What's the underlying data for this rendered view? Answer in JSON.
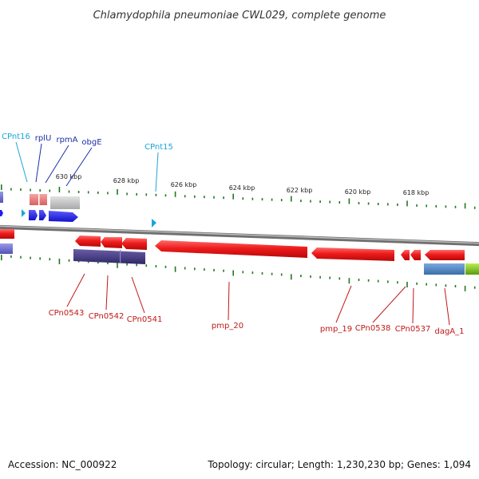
{
  "title": "Chlamydophila pneumoniae CWL029, complete genome",
  "footer": {
    "accession": "Accession: NC_000922",
    "summary": "Topology: circular; Length: 1,230,230 bp; Genes: 1,094"
  },
  "ticks": [
    "630 kbp",
    "628 kbp",
    "626 kbp",
    "624 kbp",
    "622 kbp",
    "620 kbp",
    "618 kbp"
  ],
  "colors": {
    "backbone": "#8a8a8a",
    "cds": "#ee1c1c",
    "trna": "#2020ee",
    "rrna_pink": "#e88080",
    "misc_gray": "#c0c0c0",
    "purple": "#4a3f8a",
    "steelblue": "#4f86c0",
    "lime": "#88cc22",
    "ticks": "#227722",
    "label_blue": "#1c2fa6",
    "label_cyan": "#1aa6d6",
    "label_red": "#c01818"
  },
  "labels_top": [
    {
      "text": "CPnt16",
      "kind": "cyan"
    },
    {
      "text": "rplU",
      "kind": "blue"
    },
    {
      "text": "rpmA",
      "kind": "blue"
    },
    {
      "text": "obgE",
      "kind": "blue"
    },
    {
      "text": "CPnt15",
      "kind": "cyan"
    }
  ],
  "labels_bottom": [
    {
      "text": "CPn0543"
    },
    {
      "text": "CPn0542"
    },
    {
      "text": "CPn0541"
    },
    {
      "text": "pmp_20"
    },
    {
      "text": "pmp_19"
    },
    {
      "text": "CPn0538"
    },
    {
      "text": "CPn0537"
    },
    {
      "text": "dagA_1"
    }
  ]
}
